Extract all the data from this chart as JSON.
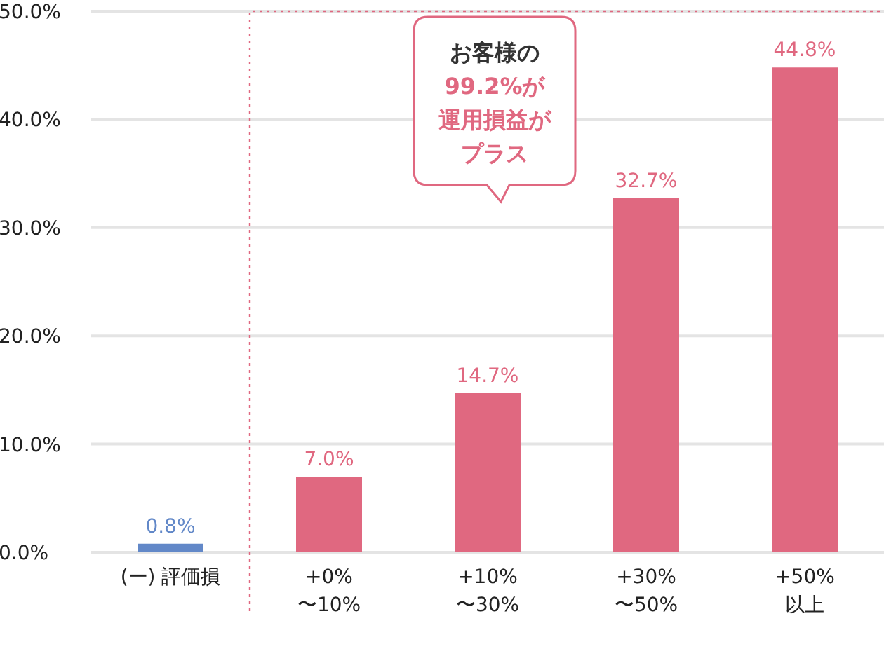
{
  "chart_data": {
    "type": "bar",
    "categories": [
      "(ー) 評価損",
      "+0%\n〜10%",
      "+10%\n〜30%",
      "+30%\n〜50%",
      "+50%\n以上"
    ],
    "values": [
      0.8,
      7.0,
      14.7,
      32.7,
      44.8
    ],
    "colors": [
      "#6288c8",
      "#e06880",
      "#e06880",
      "#e06880",
      "#e06880"
    ],
    "value_labels": [
      "0.8%",
      "7.0%",
      "14.7%",
      "32.7%",
      "44.8%"
    ],
    "ylim": [
      0,
      50
    ],
    "yticks": [
      {
        "value": 0,
        "label": "0.0%"
      },
      {
        "value": 10,
        "label": "10.0%"
      },
      {
        "value": 20,
        "label": "20.0%"
      },
      {
        "value": 30,
        "label": "30.0%"
      },
      {
        "value": 40,
        "label": "40.0%"
      },
      {
        "value": 50,
        "label": "50.0%"
      }
    ],
    "grid": "y",
    "annotations": [
      "お客様の99.2%が運用損益がプラス"
    ]
  }
}
